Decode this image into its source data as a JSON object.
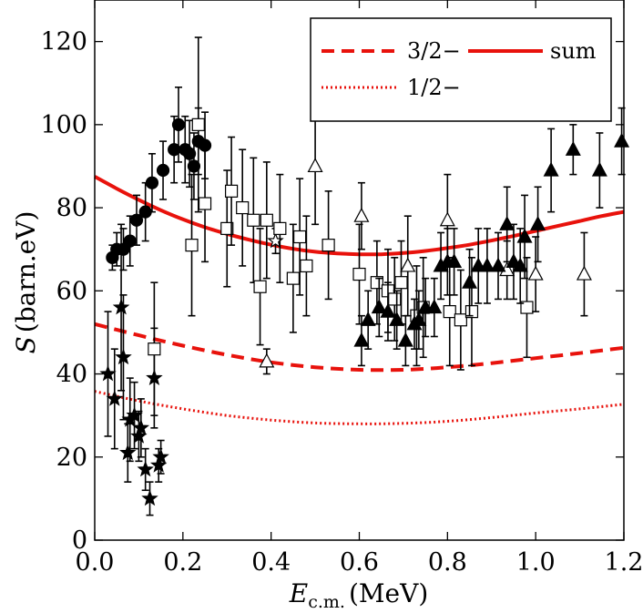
{
  "chart_data": {
    "type": "scatter",
    "xlabel_main": "E",
    "xlabel_sub": "c.m.",
    "xlabel_unit": "(MeV)",
    "ylabel_main": "S",
    "ylabel_unit": "(barn.eV)",
    "xlim": [
      0,
      1.2
    ],
    "ylim": [
      0,
      130
    ],
    "xticks": [
      0.0,
      0.2,
      0.4,
      0.6,
      0.8,
      1.0,
      1.2
    ],
    "xtick_labels": [
      "0.0",
      "0.2",
      "0.4",
      "0.6",
      "0.8",
      "1.0",
      "1.2"
    ],
    "yticks": [
      0,
      20,
      40,
      60,
      80,
      100,
      120
    ],
    "ytick_labels": [
      "0",
      "20",
      "40",
      "60",
      "80",
      "100",
      "120"
    ],
    "legend": [
      {
        "label": "3/2−",
        "style": "dashed",
        "color": "#e8120c"
      },
      {
        "label": "sum",
        "style": "solid",
        "color": "#e8120c"
      },
      {
        "label": "1/2−",
        "style": "dotted",
        "color": "#e8120c"
      }
    ],
    "curves": [
      {
        "name": "sum",
        "style": "solid",
        "color": "#e8120c",
        "x": [
          0.0,
          0.05,
          0.1,
          0.15,
          0.2,
          0.25,
          0.3,
          0.35,
          0.4,
          0.45,
          0.5,
          0.55,
          0.6,
          0.65,
          0.7,
          0.75,
          0.8,
          0.85,
          0.9,
          0.95,
          1.0,
          1.05,
          1.1,
          1.15,
          1.2
        ],
        "y": [
          87.5,
          84.6,
          81.9,
          79.4,
          77.2,
          75.3,
          73.7,
          72.3,
          71.1,
          70.1,
          69.4,
          69.0,
          68.8,
          68.8,
          69.1,
          69.6,
          70.3,
          71.1,
          72.1,
          73.2,
          74.4,
          75.6,
          76.8,
          78.0,
          79.0
        ]
      },
      {
        "name": "3/2-",
        "style": "dashed",
        "color": "#e8120c",
        "x": [
          0.0,
          0.1,
          0.2,
          0.3,
          0.4,
          0.5,
          0.6,
          0.7,
          0.8,
          0.9,
          1.0,
          1.1,
          1.2
        ],
        "y": [
          52.0,
          49.3,
          46.8,
          44.6,
          42.8,
          41.6,
          41.0,
          41.0,
          41.6,
          42.6,
          43.8,
          45.0,
          46.3
        ]
      },
      {
        "name": "1/2-",
        "style": "dotted",
        "color": "#e8120c",
        "x": [
          0.0,
          0.1,
          0.2,
          0.3,
          0.4,
          0.5,
          0.6,
          0.7,
          0.8,
          0.9,
          1.0,
          1.1,
          1.2
        ],
        "y": [
          35.8,
          33.5,
          31.6,
          30.0,
          28.9,
          28.2,
          28.0,
          28.1,
          28.6,
          29.5,
          30.6,
          31.6,
          32.7
        ]
      }
    ],
    "series": [
      {
        "name": "filled-circles",
        "marker": "circle",
        "filled": true,
        "points": [
          [
            0.04,
            68,
            3
          ],
          [
            0.05,
            70,
            4
          ],
          [
            0.065,
            70,
            5
          ],
          [
            0.08,
            72,
            6
          ],
          [
            0.095,
            77,
            6
          ],
          [
            0.115,
            79,
            7
          ],
          [
            0.13,
            86,
            7
          ],
          [
            0.155,
            89,
            7
          ],
          [
            0.18,
            94,
            8
          ],
          [
            0.19,
            100,
            9
          ],
          [
            0.205,
            94,
            8
          ],
          [
            0.215,
            93,
            8
          ],
          [
            0.225,
            90,
            8
          ],
          [
            0.235,
            96,
            8
          ],
          [
            0.25,
            95,
            8
          ]
        ]
      },
      {
        "name": "filled-stars",
        "marker": "star",
        "filled": true,
        "points": [
          [
            0.03,
            40,
            15
          ],
          [
            0.045,
            34,
            12
          ],
          [
            0.06,
            56,
            20
          ],
          [
            0.065,
            44,
            15
          ],
          [
            0.075,
            21,
            7
          ],
          [
            0.08,
            29,
            10
          ],
          [
            0.09,
            30,
            8
          ],
          [
            0.1,
            25,
            6
          ],
          [
            0.105,
            27,
            7
          ],
          [
            0.115,
            17,
            5
          ],
          [
            0.125,
            10,
            4
          ],
          [
            0.135,
            39,
            12
          ],
          [
            0.145,
            18,
            4
          ],
          [
            0.15,
            20,
            4
          ]
        ]
      },
      {
        "name": "open-stars",
        "marker": "star",
        "filled": false,
        "points": [
          [
            0.41,
            72,
            3
          ]
        ]
      },
      {
        "name": "open-squares",
        "marker": "square",
        "filled": false,
        "points": [
          [
            0.135,
            46,
            16
          ],
          [
            0.22,
            71,
            17
          ],
          [
            0.235,
            100,
            21
          ],
          [
            0.25,
            81,
            14
          ],
          [
            0.3,
            75,
            14
          ],
          [
            0.31,
            84,
            13
          ],
          [
            0.335,
            80,
            14
          ],
          [
            0.36,
            77,
            15
          ],
          [
            0.375,
            61,
            14
          ],
          [
            0.39,
            77,
            14
          ],
          [
            0.42,
            75,
            13
          ],
          [
            0.45,
            63,
            13
          ],
          [
            0.465,
            73,
            14
          ],
          [
            0.48,
            66,
            12
          ],
          [
            0.53,
            71,
            13
          ],
          [
            0.6,
            64,
            12
          ],
          [
            0.64,
            62,
            10
          ],
          [
            0.665,
            60,
            10
          ],
          [
            0.68,
            58,
            10
          ],
          [
            0.695,
            62,
            10
          ],
          [
            0.73,
            54,
            12
          ],
          [
            0.745,
            56,
            12
          ],
          [
            0.805,
            55,
            13
          ],
          [
            0.83,
            53,
            12
          ],
          [
            0.855,
            55,
            13
          ],
          [
            0.98,
            56,
            12
          ]
        ]
      },
      {
        "name": "open-triangles",
        "marker": "triangle",
        "filled": false,
        "points": [
          [
            0.39,
            43,
            3
          ],
          [
            0.5,
            90,
            14
          ],
          [
            0.605,
            78,
            8
          ],
          [
            0.71,
            66,
            12
          ],
          [
            0.8,
            77,
            11
          ],
          [
            0.935,
            65,
            7
          ],
          [
            1.0,
            64,
            9
          ],
          [
            1.11,
            64,
            10
          ]
        ]
      },
      {
        "name": "filled-triangles",
        "marker": "triangle",
        "filled": true,
        "points": [
          [
            0.605,
            48,
            6
          ],
          [
            0.62,
            53,
            7
          ],
          [
            0.645,
            56,
            7
          ],
          [
            0.665,
            55,
            7
          ],
          [
            0.685,
            53,
            7
          ],
          [
            0.705,
            48,
            6
          ],
          [
            0.725,
            52,
            6
          ],
          [
            0.735,
            53,
            7
          ],
          [
            0.75,
            56,
            7
          ],
          [
            0.77,
            56,
            7
          ],
          [
            0.785,
            66,
            8
          ],
          [
            0.8,
            67,
            8
          ],
          [
            0.815,
            67,
            8
          ],
          [
            0.85,
            62,
            8
          ],
          [
            0.87,
            66,
            9
          ],
          [
            0.89,
            66,
            9
          ],
          [
            0.915,
            66,
            8
          ],
          [
            0.935,
            76,
            9
          ],
          [
            0.95,
            67,
            9
          ],
          [
            0.965,
            66,
            9
          ],
          [
            0.975,
            73,
            10
          ],
          [
            1.005,
            76,
            9
          ],
          [
            1.035,
            89,
            10
          ],
          [
            1.085,
            94,
            6
          ],
          [
            1.145,
            89,
            9
          ],
          [
            1.195,
            96,
            8
          ]
        ]
      }
    ]
  }
}
